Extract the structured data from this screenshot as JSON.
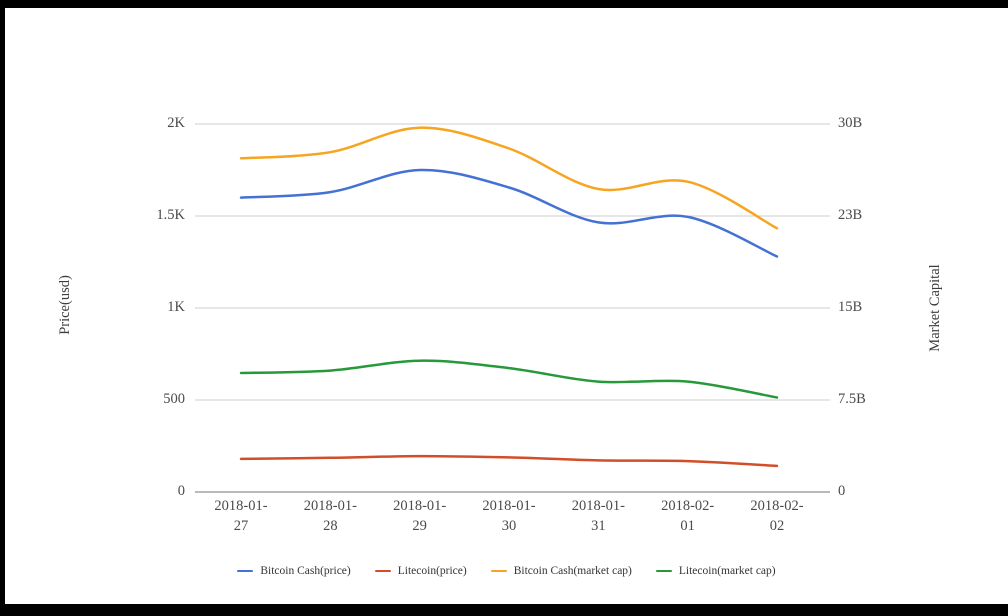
{
  "chart_data": {
    "type": "line",
    "title": "",
    "x": [
      "2018-01-27",
      "2018-01-28",
      "2018-01-29",
      "2018-01-30",
      "2018-01-31",
      "2018-02-01",
      "2018-02-02"
    ],
    "left_axis": {
      "label": "Price(usd)",
      "range": [
        0,
        2000
      ],
      "tick_values": [
        0,
        500,
        1000,
        1500,
        2000
      ],
      "tick_labels": [
        "0",
        "500",
        "1K",
        "1.5K",
        "2K"
      ]
    },
    "right_axis": {
      "label": "Market Capital",
      "range": [
        0,
        30
      ],
      "tick_values": [
        0,
        7.5,
        15,
        22.5,
        30
      ],
      "tick_labels": [
        "0",
        "7.5B",
        "15B",
        "23B",
        "30B"
      ]
    },
    "series": [
      {
        "name": "Bitcoin Cash(price)",
        "axis": "left",
        "color": "#4371d4",
        "values": [
          1600,
          1630,
          1750,
          1655,
          1465,
          1495,
          1280
        ]
      },
      {
        "name": "Litecoin(price)",
        "axis": "left",
        "color": "#d14e28",
        "values": [
          180,
          186,
          195,
          188,
          172,
          168,
          142
        ]
      },
      {
        "name": "Bitcoin Cash(market cap)",
        "axis": "right",
        "color": "#f7a521",
        "values": [
          27.2,
          27.7,
          29.7,
          28.0,
          24.7,
          25.3,
          21.5
        ]
      },
      {
        "name": "Litecoin(market cap)",
        "axis": "right",
        "color": "#27993b",
        "values": [
          9.7,
          9.9,
          10.7,
          10.1,
          9.0,
          9.0,
          7.7
        ]
      }
    ],
    "grid": "horizontal",
    "gridline_color": "#cccccc",
    "baseline_color": "#757575",
    "legend_position": "bottom",
    "smooth": true
  }
}
